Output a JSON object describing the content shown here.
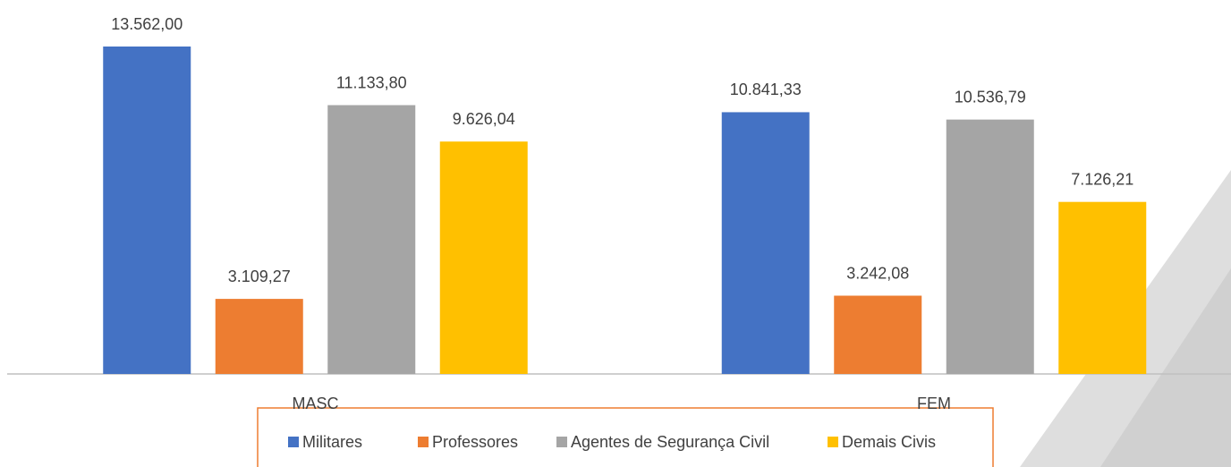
{
  "chart_data": {
    "type": "bar",
    "categories": [
      "MASC",
      "FEM"
    ],
    "series": [
      {
        "name": "Militares",
        "color": "#4472c4",
        "values": [
          13562.0,
          10841.33
        ],
        "value_labels": [
          "13.562,00",
          "10.841,33"
        ]
      },
      {
        "name": "Professores",
        "color": "#ed7d31",
        "values": [
          3109.27,
          3242.08
        ],
        "value_labels": [
          "3.109,27",
          "3.242,08"
        ]
      },
      {
        "name": "Agentes de Segurança Civil",
        "color": "#a5a5a5",
        "values": [
          11133.8,
          10536.79
        ],
        "value_labels": [
          "11.133,80",
          "10.536,79"
        ]
      },
      {
        "name": "Demais Civis",
        "color": "#ffc000",
        "values": [
          9626.04,
          7126.21
        ],
        "value_labels": [
          "9.626,04",
          "7.126,21"
        ]
      }
    ],
    "legend": "bottom"
  }
}
